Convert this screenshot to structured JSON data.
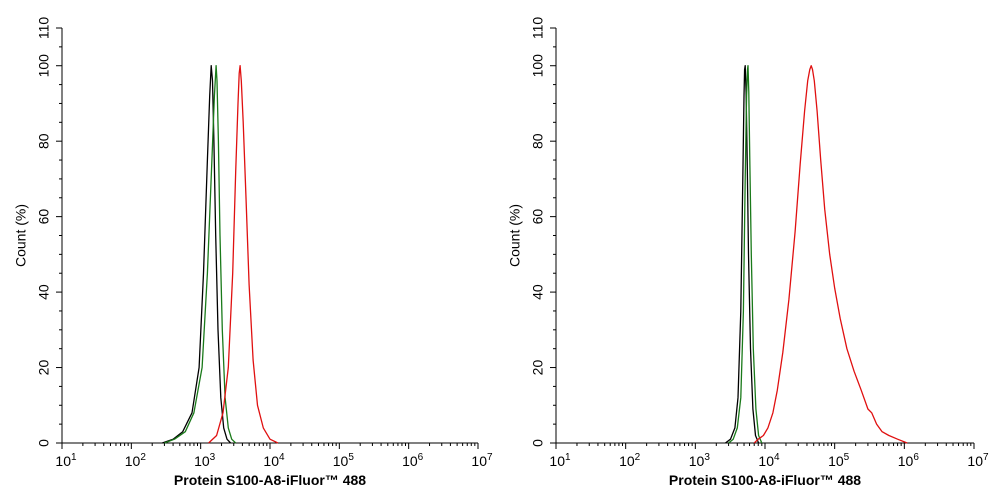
{
  "chart_data": [
    {
      "type": "line",
      "title": "",
      "xlabel": "Protein S100-A8-iFluor™ 488",
      "ylabel": "Count (%)",
      "x_scale": "log",
      "xlim": [
        10,
        10000000
      ],
      "ylim": [
        0,
        110
      ],
      "x_tick_labels": [
        {
          "base": "10",
          "exp": "1"
        },
        {
          "base": "10",
          "exp": "2"
        },
        {
          "base": "10",
          "exp": "3"
        },
        {
          "base": "10",
          "exp": "4"
        },
        {
          "base": "10",
          "exp": "5"
        },
        {
          "base": "10",
          "exp": "6"
        },
        {
          "base": "10",
          "exp": "7"
        }
      ],
      "y_tick_labels": [
        "0",
        "20",
        "40",
        "60",
        "80",
        "100",
        "110"
      ],
      "grid": false,
      "series": [
        {
          "color": "#000000",
          "x": [
            280,
            400,
            550,
            750,
            950,
            1100,
            1250,
            1350,
            1420,
            1480,
            1550,
            1650,
            1780,
            1950,
            2150,
            2400,
            2700
          ],
          "y": [
            0,
            1,
            3,
            8,
            20,
            45,
            75,
            92,
            100,
            96,
            80,
            55,
            30,
            12,
            4,
            1,
            0
          ]
        },
        {
          "color": "#1a7a1a",
          "x": [
            300,
            420,
            600,
            800,
            1050,
            1250,
            1450,
            1580,
            1670,
            1720,
            1800,
            1900,
            2050,
            2250,
            2500,
            2800,
            3200
          ],
          "y": [
            0,
            1,
            3,
            8,
            20,
            45,
            75,
            92,
            100,
            96,
            80,
            55,
            30,
            12,
            4,
            1,
            0
          ]
        },
        {
          "color": "#e01010",
          "x": [
            1300,
            1700,
            2100,
            2500,
            2900,
            3200,
            3450,
            3600,
            3700,
            3850,
            4100,
            4500,
            5000,
            5700,
            6600,
            8000,
            10000,
            13000
          ],
          "y": [
            0,
            2,
            8,
            20,
            45,
            72,
            90,
            98,
            100,
            96,
            85,
            65,
            42,
            22,
            10,
            4,
            1,
            0
          ]
        }
      ]
    },
    {
      "type": "line",
      "title": "",
      "xlabel": "Protein S100-A8-iFluor™ 488",
      "ylabel": "Count (%)",
      "x_scale": "log",
      "xlim": [
        10,
        10000000
      ],
      "ylim": [
        0,
        110
      ],
      "x_tick_labels": [
        {
          "base": "10",
          "exp": "1"
        },
        {
          "base": "10",
          "exp": "2"
        },
        {
          "base": "10",
          "exp": "3"
        },
        {
          "base": "10",
          "exp": "4"
        },
        {
          "base": "10",
          "exp": "5"
        },
        {
          "base": "10",
          "exp": "6"
        },
        {
          "base": "10",
          "exp": "7"
        }
      ],
      "y_tick_labels": [
        "0",
        "20",
        "40",
        "60",
        "80",
        "100",
        "110"
      ],
      "grid": false,
      "series": [
        {
          "color": "#000000",
          "x": [
            2700,
            3200,
            3700,
            4100,
            4500,
            4800,
            5000,
            5100,
            5200,
            5350,
            5550,
            5800,
            6200,
            6700,
            7300,
            8100
          ],
          "y": [
            0,
            1,
            4,
            12,
            35,
            70,
            92,
            99,
            100,
            93,
            75,
            50,
            25,
            9,
            2,
            0
          ]
        },
        {
          "color": "#1a7a1a",
          "x": [
            3000,
            3500,
            4000,
            4500,
            4900,
            5200,
            5450,
            5600,
            5700,
            5850,
            6050,
            6350,
            6800,
            7400,
            8100,
            9000
          ],
          "y": [
            0,
            1,
            4,
            12,
            35,
            70,
            92,
            99,
            100,
            93,
            75,
            50,
            25,
            9,
            2,
            0
          ]
        },
        {
          "color": "#e01010",
          "x": [
            7000,
            8000,
            9500,
            11000,
            13000,
            15000,
            18000,
            22000,
            27000,
            32000,
            37000,
            41000,
            44000,
            46000,
            48000,
            51000,
            56000,
            63000,
            72000,
            85000,
            100000,
            120000,
            150000,
            190000,
            240000,
            300000,
            340000,
            400000,
            480000,
            600000,
            800000,
            1100000
          ],
          "y": [
            0,
            1,
            2,
            4,
            8,
            14,
            24,
            38,
            56,
            74,
            88,
            96,
            99,
            100,
            99,
            96,
            88,
            75,
            62,
            50,
            41,
            33,
            25,
            19,
            14,
            9,
            8,
            5,
            3,
            2,
            1,
            0
          ]
        }
      ]
    }
  ]
}
